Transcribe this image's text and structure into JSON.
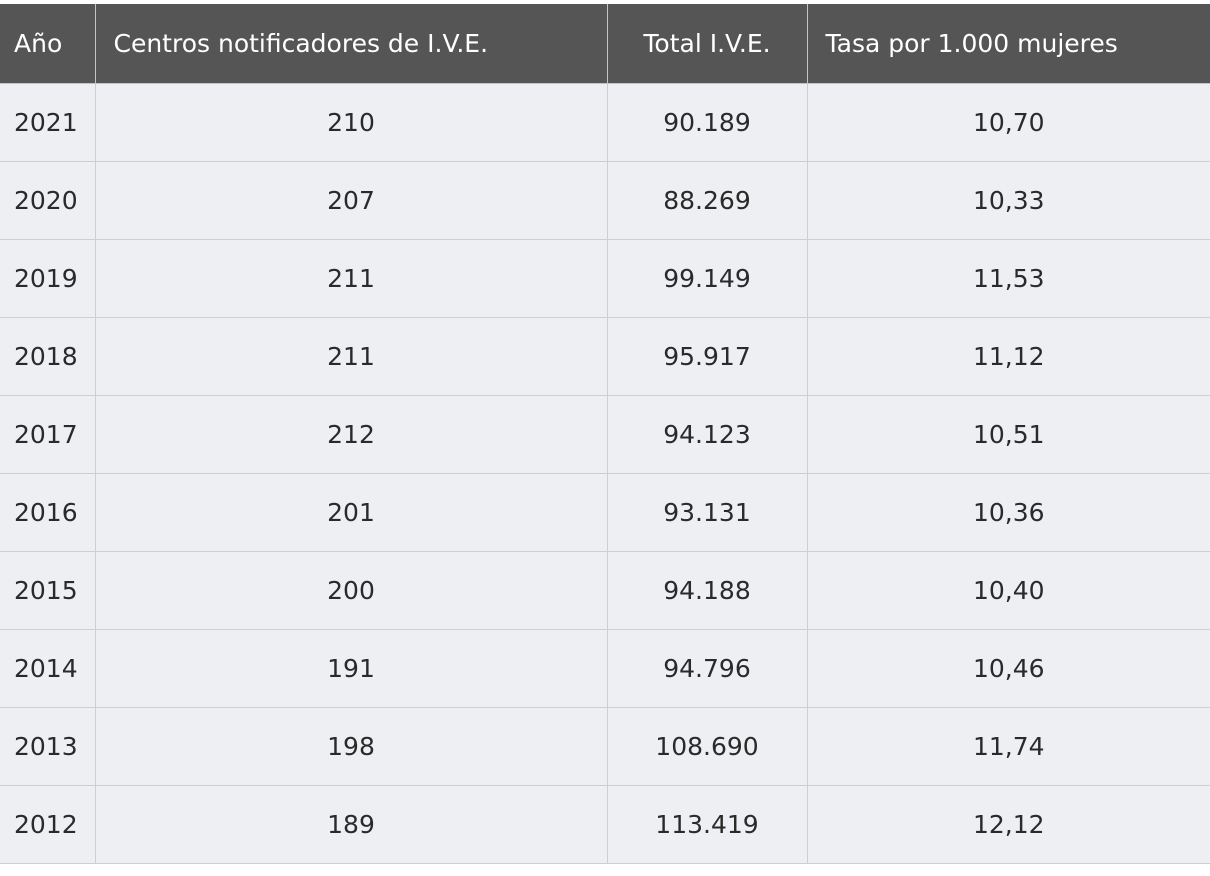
{
  "table": {
    "headers": {
      "year": "Año",
      "centros": "Centros notificadores de I.V.E.",
      "total": "Total I.V.E.",
      "tasa": "Tasa por 1.000 mujeres"
    },
    "rows": [
      {
        "year": "2021",
        "centros": "210",
        "total": "90.189",
        "tasa": "10,70"
      },
      {
        "year": "2020",
        "centros": "207",
        "total": "88.269",
        "tasa": "10,33"
      },
      {
        "year": "2019",
        "centros": "211",
        "total": "99.149",
        "tasa": "11,53"
      },
      {
        "year": "2018",
        "centros": "211",
        "total": "95.917",
        "tasa": "11,12"
      },
      {
        "year": "2017",
        "centros": "212",
        "total": "94.123",
        "tasa": "10,51"
      },
      {
        "year": "2016",
        "centros": "201",
        "total": "93.131",
        "tasa": "10,36"
      },
      {
        "year": "2015",
        "centros": "200",
        "total": "94.188",
        "tasa": "10,40"
      },
      {
        "year": "2014",
        "centros": "191",
        "total": "94.796",
        "tasa": "10,46"
      },
      {
        "year": "2013",
        "centros": "198",
        "total": "108.690",
        "tasa": "11,74"
      },
      {
        "year": "2012",
        "centros": "189",
        "total": "113.419",
        "tasa": "12,12"
      }
    ]
  },
  "colors": {
    "header_bg": "#555555",
    "header_text": "#ffffff",
    "row_bg": "#eeeff3",
    "grid_line": "#cfcfcf"
  }
}
